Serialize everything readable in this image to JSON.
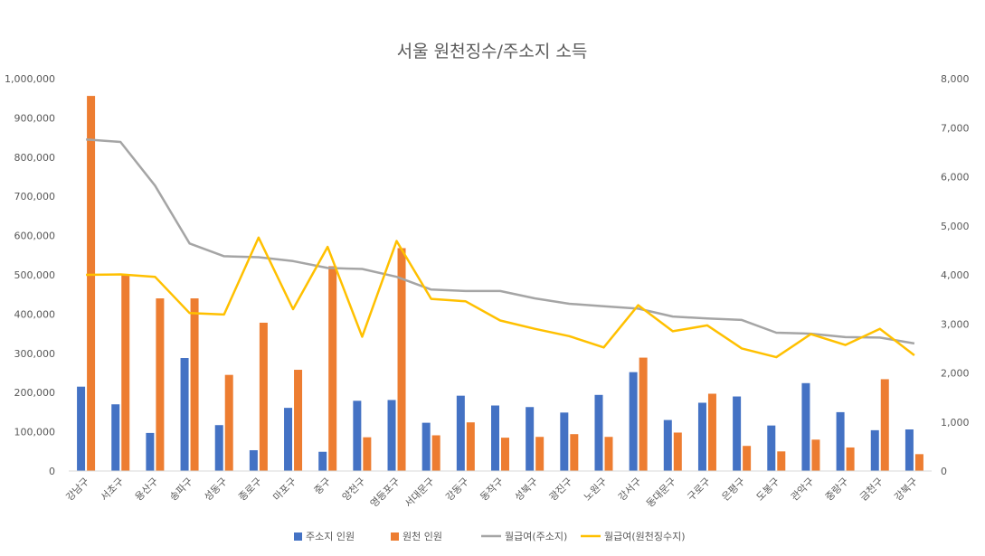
{
  "chart_data": {
    "type": "bar",
    "title": "서울 원천징수/주소지 소득",
    "categories": [
      "강남구",
      "서초구",
      "용산구",
      "송파구",
      "성동구",
      "종로구",
      "마포구",
      "중구",
      "양천구",
      "영등포구",
      "서대문구",
      "강동구",
      "동작구",
      "성북구",
      "광진구",
      "노원구",
      "강서구",
      "동대문구",
      "구로구",
      "은평구",
      "도봉구",
      "관악구",
      "중랑구",
      "금천구",
      "강북구"
    ],
    "series": [
      {
        "name": "주소지 인원",
        "kind": "bar",
        "axis": "left",
        "color": "#4472C4",
        "values": [
          215000,
          170000,
          97000,
          288000,
          117000,
          53000,
          161000,
          49000,
          179000,
          181000,
          123000,
          192000,
          167000,
          163000,
          149000,
          194000,
          252000,
          130000,
          174000,
          190000,
          116000,
          224000,
          150000,
          104000,
          106000
        ]
      },
      {
        "name": "원천 인원",
        "kind": "bar",
        "axis": "left",
        "color": "#ED7D31",
        "values": [
          956000,
          500000,
          440000,
          440000,
          245000,
          378000,
          258000,
          522000,
          86000,
          568000,
          91000,
          124000,
          85000,
          87000,
          94000,
          87000,
          289000,
          98000,
          197000,
          64000,
          50000,
          80000,
          60000,
          234000,
          43000
        ]
      },
      {
        "name": "월급여(주소지)",
        "kind": "line",
        "axis": "right",
        "color": "#A5A5A5",
        "values": [
          6760,
          6710,
          5820,
          4640,
          4380,
          4360,
          4280,
          4140,
          4120,
          3960,
          3700,
          3670,
          3670,
          3520,
          3410,
          3360,
          3310,
          3150,
          3110,
          3080,
          2820,
          2800,
          2730,
          2720,
          2600
        ]
      },
      {
        "name": "월급여(원천징수지)",
        "kind": "line",
        "axis": "right",
        "color": "#FFC000",
        "values": [
          4000,
          4010,
          3960,
          3220,
          3190,
          4760,
          3300,
          4570,
          2740,
          4690,
          3510,
          3460,
          3070,
          2900,
          2750,
          2520,
          3380,
          2850,
          2970,
          2500,
          2320,
          2790,
          2570,
          2900,
          2360
        ]
      }
    ],
    "y_left": {
      "min": 0,
      "max": 1000000,
      "ticks": [
        "0",
        "100,000",
        "200,000",
        "300,000",
        "400,000",
        "500,000",
        "600,000",
        "700,000",
        "800,000",
        "900,000",
        "1,000,000"
      ]
    },
    "y_right": {
      "min": 0,
      "max": 8000,
      "ticks": [
        "0",
        "1,000",
        "2,000",
        "3,000",
        "4,000",
        "5,000",
        "6,000",
        "7,000",
        "8,000"
      ]
    },
    "legend_position": "bottom",
    "grid": false
  }
}
